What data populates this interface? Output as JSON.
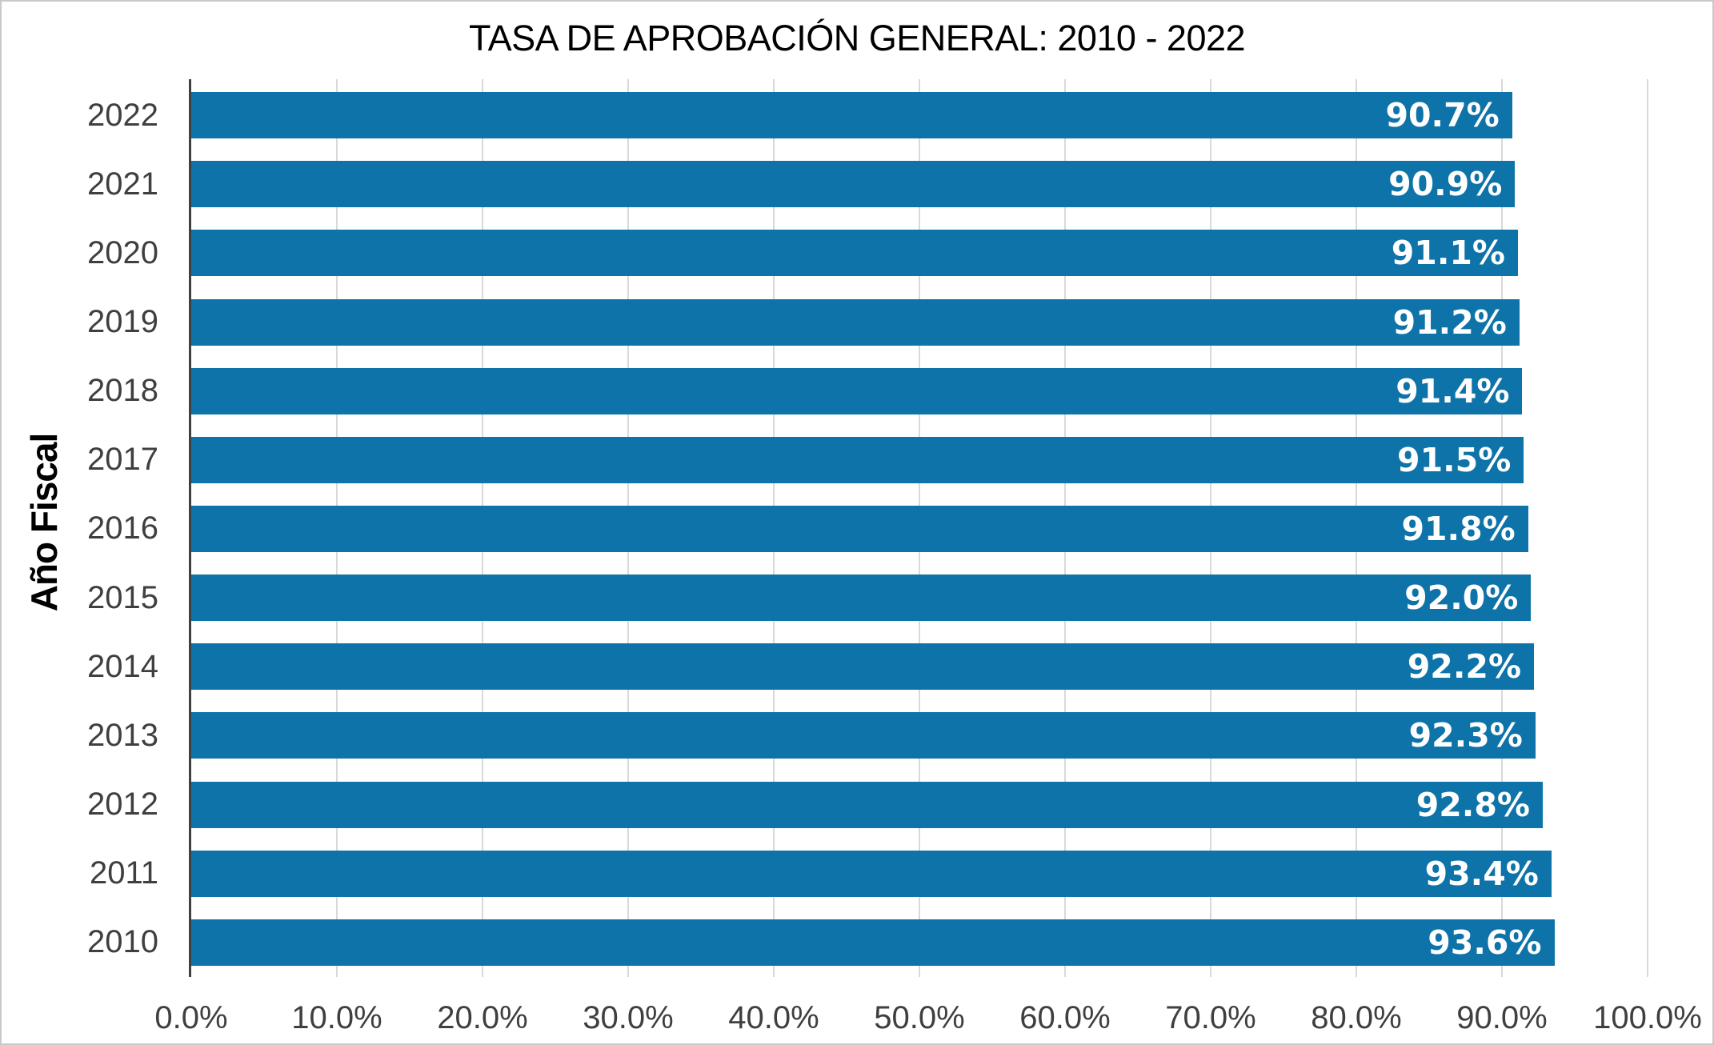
{
  "chart_data": {
    "type": "bar",
    "orientation": "horizontal",
    "title": "TASA DE APROBACIÓN GENERAL: 2010 - 2022",
    "ylabel": "Año Fiscal",
    "xlabel": "",
    "categories": [
      "2022",
      "2021",
      "2020",
      "2019",
      "2018",
      "2017",
      "2016",
      "2015",
      "2014",
      "2013",
      "2012",
      "2011",
      "2010"
    ],
    "values": [
      90.7,
      90.9,
      91.1,
      91.2,
      91.4,
      91.5,
      91.8,
      92.0,
      92.2,
      92.3,
      92.8,
      93.4,
      93.6
    ],
    "value_labels": [
      "90.7%",
      "90.9%",
      "91.1%",
      "91.2%",
      "91.4%",
      "91.5%",
      "91.8%",
      "92.0%",
      "92.2%",
      "92.3%",
      "92.8%",
      "93.4%",
      "93.6%"
    ],
    "xlim": [
      0,
      100
    ],
    "x_ticks": [
      0,
      10,
      20,
      30,
      40,
      50,
      60,
      70,
      80,
      90,
      100
    ],
    "x_tick_labels": [
      "0.0%",
      "10.0%",
      "20.0%",
      "30.0%",
      "40.0%",
      "50.0%",
      "60.0%",
      "70.0%",
      "80.0%",
      "90.0%",
      "100.0%"
    ],
    "grid": "vertical",
    "legend": "none",
    "colors": {
      "bar": "#0e73a8",
      "grid": "#d9d9d9",
      "axis": "#404040",
      "tick_text": "#3f3f3f",
      "bar_label_text": "#ffffff",
      "title_text": "#000000",
      "border": "#c9c9c9"
    }
  }
}
